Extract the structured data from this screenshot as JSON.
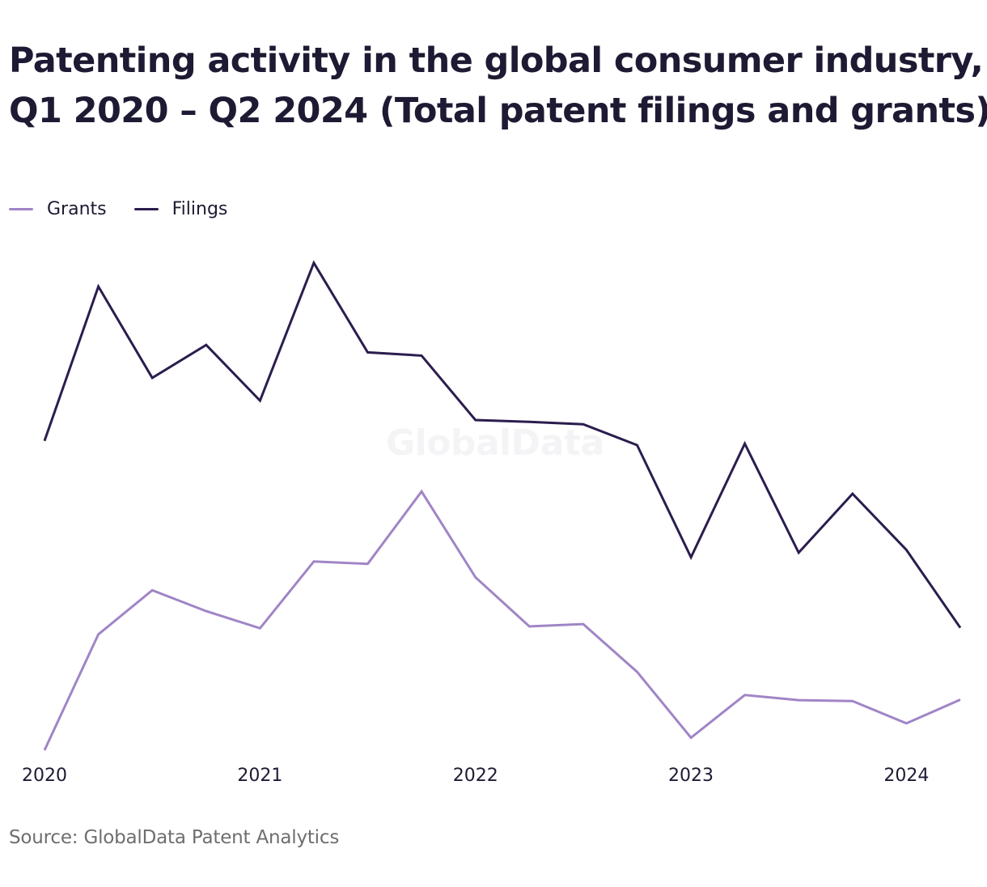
{
  "title_lines": [
    "Patenting activity in the global consumer industry,",
    "Q1 2020 – Q2 2024 (Total patent filings and grants)"
  ],
  "watermark": "GlobalData",
  "source": "Source: GlobalData Patent Analytics",
  "colors": {
    "grants": "#a085c6",
    "filings": "#2b1d4e"
  },
  "chart_data": {
    "type": "line",
    "x": [
      "Q1 2020",
      "Q2 2020",
      "Q3 2020",
      "Q4 2020",
      "Q1 2021",
      "Q2 2021",
      "Q3 2021",
      "Q4 2021",
      "Q1 2022",
      "Q2 2022",
      "Q3 2022",
      "Q4 2022",
      "Q1 2023",
      "Q2 2023",
      "Q3 2023",
      "Q4 2023",
      "Q1 2024",
      "Q2 2024"
    ],
    "xticks": [
      "2020",
      "2021",
      "2022",
      "2023",
      "2024"
    ],
    "legend_position": "top-left",
    "grid": false,
    "y_axis_shown": false,
    "ylim": [
      0,
      100
    ],
    "series": [
      {
        "name": "Grants",
        "color": "#a085c6",
        "values": [
          0,
          25,
          34.5,
          30,
          26.3,
          40.7,
          40.2,
          55.8,
          37.3,
          26.7,
          27.2,
          16.9,
          2.7,
          11.9,
          10.8,
          10.6,
          5.8,
          10.9
        ]
      },
      {
        "name": "Filings",
        "color": "#2b1d4e",
        "values": [
          66.7,
          100,
          80.3,
          87.4,
          75.4,
          105.1,
          85.8,
          85.1,
          71.2,
          70.8,
          70.3,
          65.8,
          41.6,
          66.1,
          42.6,
          55.3,
          43.2,
          26.4
        ]
      }
    ]
  }
}
